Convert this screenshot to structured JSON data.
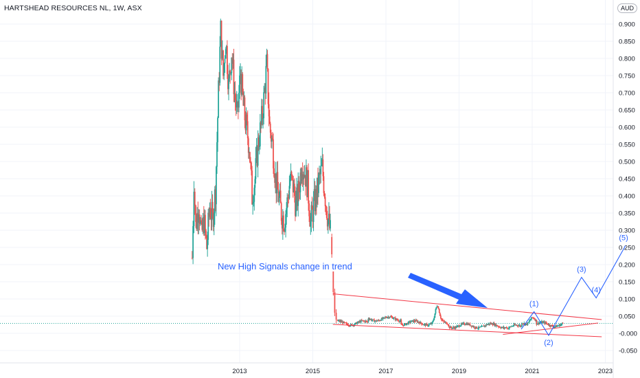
{
  "header": {
    "symbol_title": "HARTSHEAD RESOURCES NL, 1W, ASX",
    "currency": "AUD"
  },
  "colors": {
    "up": "#26a69a",
    "down": "#ef5350",
    "wave": "#2962ff",
    "trendline": "#f23645",
    "grid": "#f0f3fa",
    "axis_text": "#131722"
  },
  "chart_data": {
    "type": "candlestick",
    "title": "HARTSHEAD RESOURCES NL, 1W, ASX",
    "currency": "AUD",
    "y_ticks": [
      "0.900",
      "0.850",
      "0.800",
      "0.750",
      "0.700",
      "0.650",
      "0.600",
      "0.550",
      "0.500",
      "0.450",
      "0.400",
      "0.350",
      "0.300",
      "0.250",
      "0.200",
      "0.150",
      "0.100",
      "0.050",
      "-0.000",
      "-0.050"
    ],
    "y_tick_values": [
      0.9,
      0.85,
      0.8,
      0.75,
      0.7,
      0.65,
      0.6,
      0.55,
      0.5,
      0.45,
      0.4,
      0.35,
      0.3,
      0.25,
      0.2,
      0.15,
      0.1,
      0.05,
      0.0,
      -0.05
    ],
    "ylim": [
      -0.072,
      0.95
    ],
    "x_ticks": [
      "2013",
      "2015",
      "2017",
      "2019",
      "2021",
      "2023"
    ],
    "x_tick_values": [
      2013.0,
      2015.0,
      2017.0,
      2019.0,
      2021.0,
      2023.0
    ],
    "xlim": [
      2011.5,
      2024.3
    ],
    "current_price": 0.029,
    "price_path": [
      [
        2011.7,
        0.22
      ],
      [
        2011.75,
        0.45
      ],
      [
        2011.8,
        0.31
      ],
      [
        2011.88,
        0.38
      ],
      [
        2011.95,
        0.28
      ],
      [
        2012.02,
        0.33
      ],
      [
        2012.1,
        0.25
      ],
      [
        2012.18,
        0.37
      ],
      [
        2012.26,
        0.33
      ],
      [
        2012.34,
        0.42
      ],
      [
        2012.42,
        0.7
      ],
      [
        2012.48,
        0.88
      ],
      [
        2012.55,
        0.75
      ],
      [
        2012.62,
        0.86
      ],
      [
        2012.7,
        0.72
      ],
      [
        2012.78,
        0.82
      ],
      [
        2012.86,
        0.7
      ],
      [
        2012.94,
        0.63
      ],
      [
        2013.02,
        0.76
      ],
      [
        2013.1,
        0.66
      ],
      [
        2013.18,
        0.6
      ],
      [
        2013.26,
        0.55
      ],
      [
        2013.34,
        0.4
      ],
      [
        2013.42,
        0.45
      ],
      [
        2013.5,
        0.55
      ],
      [
        2013.58,
        0.6
      ],
      [
        2013.66,
        0.68
      ],
      [
        2013.74,
        0.78
      ],
      [
        2013.82,
        0.6
      ],
      [
        2013.9,
        0.55
      ],
      [
        2013.98,
        0.45
      ],
      [
        2014.06,
        0.4
      ],
      [
        2014.14,
        0.35
      ],
      [
        2014.22,
        0.33
      ],
      [
        2014.3,
        0.38
      ],
      [
        2014.38,
        0.45
      ],
      [
        2014.46,
        0.43
      ],
      [
        2014.54,
        0.37
      ],
      [
        2014.62,
        0.42
      ],
      [
        2014.7,
        0.5
      ],
      [
        2014.78,
        0.47
      ],
      [
        2014.86,
        0.43
      ],
      [
        2014.94,
        0.32
      ],
      [
        2015.02,
        0.37
      ],
      [
        2015.1,
        0.4
      ],
      [
        2015.18,
        0.45
      ],
      [
        2015.26,
        0.48
      ],
      [
        2015.34,
        0.4
      ],
      [
        2015.42,
        0.33
      ],
      [
        2015.5,
        0.28
      ]
    ],
    "trend_channel": {
      "upper": [
        [
          2015.55,
          0.115
        ],
        [
          2022.9,
          0.04
        ]
      ],
      "lower": [
        [
          2015.55,
          0.026
        ],
        [
          2022.9,
          -0.01
        ]
      ],
      "support": [
        [
          2020.2,
          -0.003
        ],
        [
          2022.8,
          0.03
        ]
      ]
    },
    "wave_labels": [
      {
        "label": "(1)",
        "x": 2021.05,
        "y": 0.063
      },
      {
        "label": "(2)",
        "x": 2021.45,
        "y": -0.006
      },
      {
        "label": "(3)",
        "x": 2022.35,
        "y": 0.163
      },
      {
        "label": "(4)",
        "x": 2022.75,
        "y": 0.103
      },
      {
        "label": "(5)",
        "x": 2023.5,
        "y": 0.255
      }
    ],
    "wave_path": [
      [
        2020.7,
        0.012
      ],
      [
        2021.05,
        0.063
      ],
      [
        2021.45,
        -0.006
      ],
      [
        2022.35,
        0.163
      ],
      [
        2022.75,
        0.103
      ],
      [
        2023.55,
        0.255
      ]
    ],
    "annotations": [
      {
        "text": "New High Signals change in trend"
      }
    ]
  }
}
